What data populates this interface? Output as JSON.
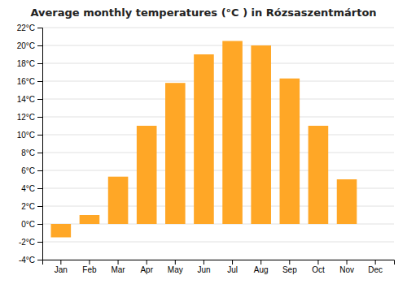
{
  "chart_data": {
    "type": "bar",
    "title": "Average monthly temperatures (°C ) in Rózsaszentmárton",
    "categories": [
      "Jan",
      "Feb",
      "Mar",
      "Apr",
      "May",
      "Jun",
      "Jul",
      "Aug",
      "Sep",
      "Oct",
      "Nov",
      "Dec"
    ],
    "values": [
      -1.5,
      1.0,
      5.3,
      11.0,
      15.8,
      19.0,
      20.5,
      20.0,
      16.3,
      11.0,
      5.0,
      0.0
    ],
    "color": "#FFA726",
    "ylim": [
      -4,
      22
    ],
    "yticks": [
      {
        "value": -4,
        "label": "-4°C"
      },
      {
        "value": -2,
        "label": "-2°C"
      },
      {
        "value": 0,
        "label": "0°C"
      },
      {
        "value": 2,
        "label": "2°C"
      },
      {
        "value": 4,
        "label": "4°C"
      },
      {
        "value": 6,
        "label": "6°C"
      },
      {
        "value": 8,
        "label": "8°C"
      },
      {
        "value": 10,
        "label": "10°C"
      },
      {
        "value": 12,
        "label": "12°C"
      },
      {
        "value": 14,
        "label": "14°C"
      },
      {
        "value": 16,
        "label": "16°C"
      },
      {
        "value": 18,
        "label": "18°C"
      },
      {
        "value": 20,
        "label": "20°C"
      },
      {
        "value": 22,
        "label": "22°C"
      }
    ],
    "grid": true
  }
}
